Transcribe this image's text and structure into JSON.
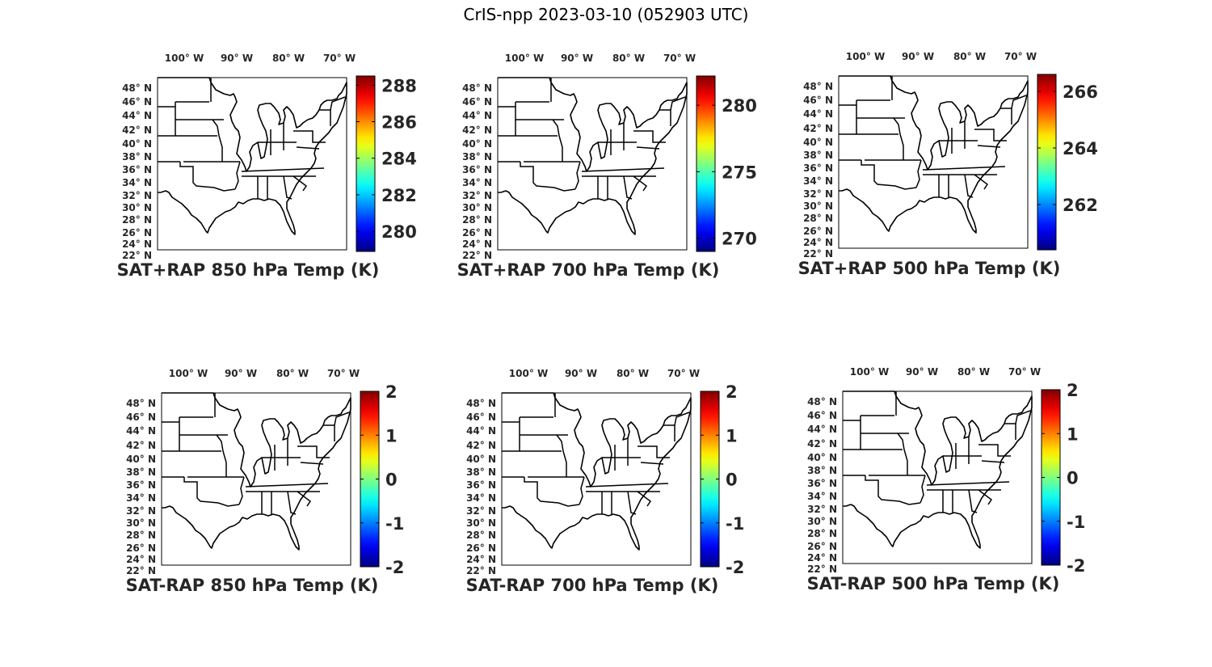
{
  "title": "CrIS-npp 2023-03-10 (052903 UTC)",
  "lon_labels": [
    "100",
    "90",
    "80",
    "70"
  ],
  "lon_hemi": "W",
  "lat_labels": [
    "48",
    "46",
    "44",
    "42",
    "40",
    "38",
    "36",
    "34",
    "32",
    "30",
    "28",
    "26",
    "24",
    "22"
  ],
  "lat_hemi": "N",
  "degree_symbol": "°",
  "colormap": "jet",
  "panels": [
    {
      "title": "SAT+RAP 850 hPa Temp (K)",
      "cmin": 278.9,
      "cmax": 288.5,
      "ticks": [
        "288",
        "286",
        "284",
        "282",
        "280"
      ],
      "tick_values": [
        288,
        286,
        284,
        282,
        280
      ]
    },
    {
      "title": "SAT+RAP 700 hPa Temp (K)",
      "cmin": 269.0,
      "cmax": 282.2,
      "ticks": [
        "280",
        "275",
        "270"
      ],
      "tick_values": [
        280,
        275,
        270
      ]
    },
    {
      "title": "SAT+RAP 500 hPa Temp (K)",
      "cmin": 260.4,
      "cmax": 266.6,
      "ticks": [
        "266",
        "264",
        "262"
      ],
      "tick_values": [
        266,
        264,
        262
      ]
    },
    {
      "title": "SAT-RAP 850 hPa Temp (K)",
      "cmin": -2,
      "cmax": 2,
      "ticks": [
        "2",
        "1",
        "0",
        "-1",
        "-2"
      ],
      "tick_values": [
        2,
        1,
        0,
        -1,
        -2
      ]
    },
    {
      "title": "SAT-RAP 700 hPa Temp (K)",
      "cmin": -2,
      "cmax": 2,
      "ticks": [
        "2",
        "1",
        "0",
        "-1",
        "-2"
      ],
      "tick_values": [
        2,
        1,
        0,
        -1,
        -2
      ]
    },
    {
      "title": "SAT-RAP 500 hPa Temp (K)",
      "cmin": -2,
      "cmax": 2,
      "ticks": [
        "2",
        "1",
        "0",
        "-1",
        "-2"
      ],
      "tick_values": [
        2,
        1,
        0,
        -1,
        -2
      ]
    }
  ]
}
